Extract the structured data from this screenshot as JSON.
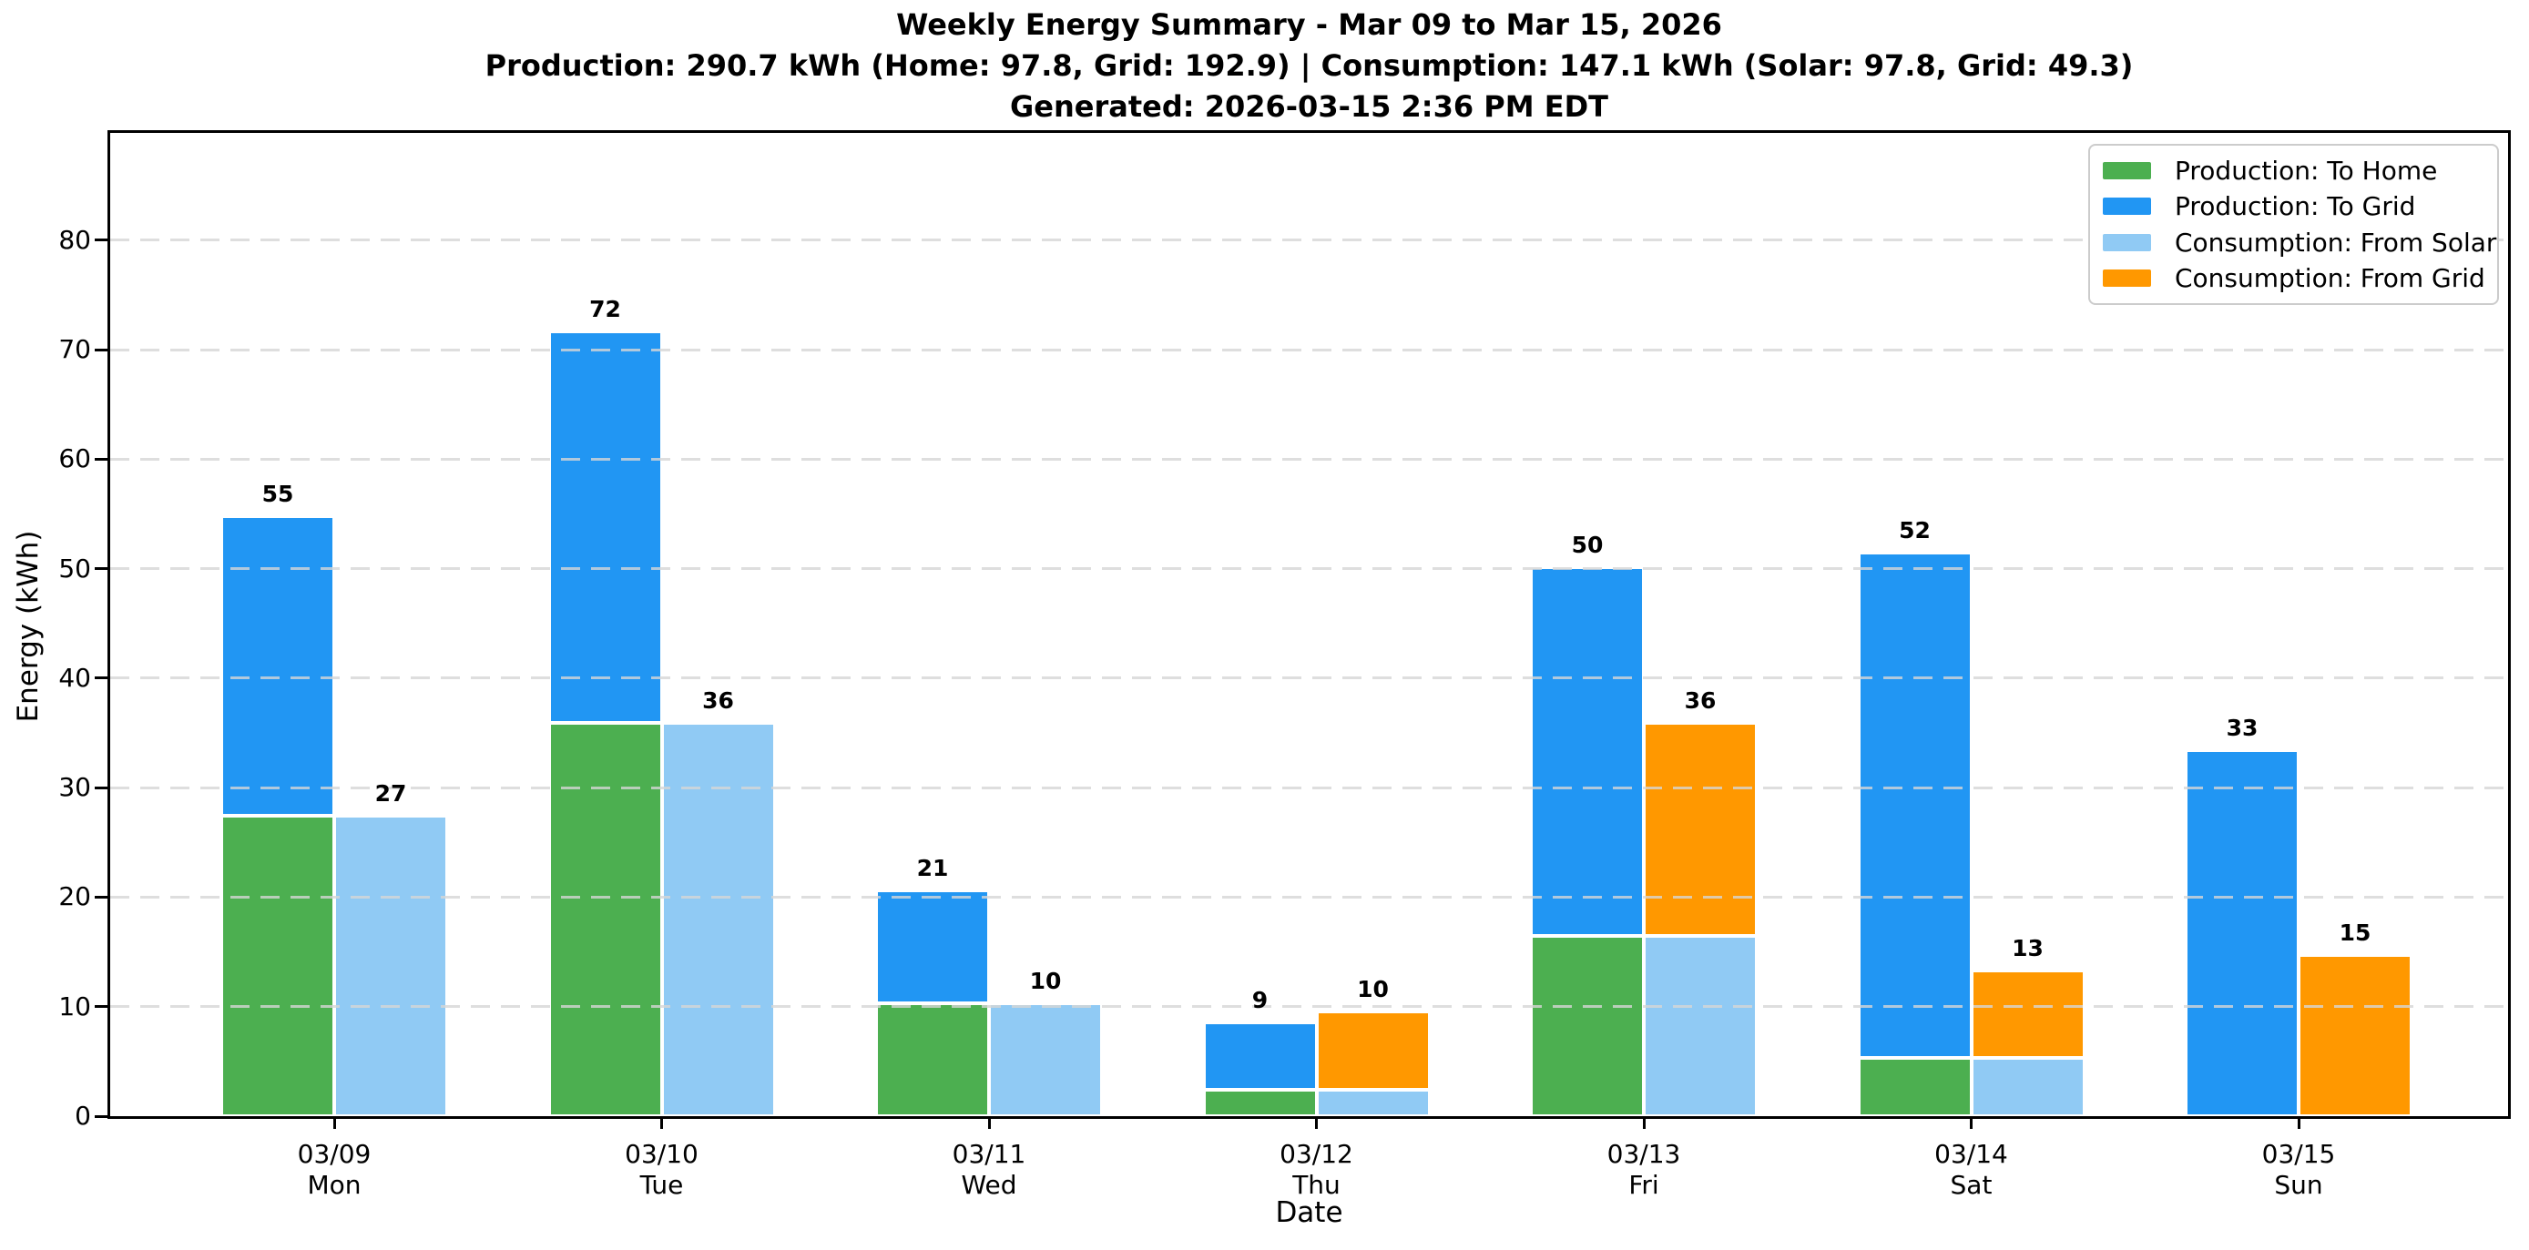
{
  "figure": {
    "title": "Weekly Energy Summary - Mar 09 to Mar 15, 2026",
    "subtitle": "Production: 290.7 kWh (Home: 97.8, Grid: 192.9) | Consumption: 147.1 kWh (Solar: 97.8, Grid: 49.3)",
    "generated_line": "Generated: 2026-03-15 2:36 PM EDT"
  },
  "axes": {
    "xlabel": "Date",
    "ylabel": "Energy (kWh)"
  },
  "legend": {
    "items": [
      {
        "label": "Production: To Home",
        "color": "#4CAF50"
      },
      {
        "label": "Production: To Grid",
        "color": "#2196F3"
      },
      {
        "label": "Consumption: From Solar",
        "color": "#90CAF4"
      },
      {
        "label": "Consumption: From Grid",
        "color": "#FF9800"
      }
    ]
  },
  "colors": {
    "production_home": "#4CAF50",
    "production_grid": "#2196F3",
    "consumption_solar": "#90CAF4",
    "consumption_grid": "#FF9800",
    "gridline": "#D6D6D6",
    "spine": "#000000"
  },
  "chart_data": {
    "type": "bar",
    "mode": "two stacked bars per category (production left, consumption right)",
    "title": "Weekly Energy Summary - Mar 09 to Mar 15, 2026",
    "subtitle": "Production: 290.7 kWh (Home: 97.8, Grid: 192.9) | Consumption: 147.1 kWh (Solar: 97.8, Grid: 49.3)",
    "generated": "Generated: 2026-03-15 2:36 PM EDT",
    "xlabel": "Date",
    "ylabel": "Energy (kWh)",
    "ylim": [
      0,
      89.8
    ],
    "yticks": [
      0,
      10,
      20,
      30,
      40,
      50,
      60,
      70,
      80
    ],
    "grid": "horizontal dashed light-gray, drawn over bars",
    "legend_position": "upper right",
    "categories": [
      {
        "date": "03/09",
        "weekday": "Mon"
      },
      {
        "date": "03/10",
        "weekday": "Tue"
      },
      {
        "date": "03/11",
        "weekday": "Wed"
      },
      {
        "date": "03/12",
        "weekday": "Thu"
      },
      {
        "date": "03/13",
        "weekday": "Fri"
      },
      {
        "date": "03/14",
        "weekday": "Sat"
      },
      {
        "date": "03/15",
        "weekday": "Sun"
      }
    ],
    "stacks": [
      {
        "id": "production",
        "total_labels": [
          "55",
          "72",
          "21",
          "9",
          "50",
          "52",
          "33"
        ],
        "series": [
          {
            "name": "Production: To Home",
            "color": "#4CAF50",
            "values": [
              27.4,
              35.9,
              10.3,
              2.4,
              16.5,
              5.3,
              0
            ]
          },
          {
            "name": "Production: To Grid",
            "color": "#2196F3",
            "values": [
              27.4,
              35.8,
              10.3,
              6.2,
              33.6,
              46.2,
              33.4
            ]
          }
        ]
      },
      {
        "id": "consumption",
        "total_labels": [
          "27",
          "36",
          "10",
          "10",
          "36",
          "13",
          "15"
        ],
        "series": [
          {
            "name": "Consumption: From Solar",
            "color": "#90CAF4",
            "values": [
              27.4,
              35.9,
              10.3,
              2.4,
              16.5,
              5.3,
              0
            ]
          },
          {
            "name": "Consumption: From Grid",
            "color": "#FF9800",
            "values": [
              0,
              0,
              0,
              7.2,
              19.4,
              8.0,
              14.7
            ]
          }
        ]
      }
    ],
    "weekly_totals": {
      "production_kwh": 290.7,
      "production_to_home_kwh": 97.8,
      "production_to_grid_kwh": 192.9,
      "consumption_kwh": 147.1,
      "consumption_from_solar_kwh": 97.8,
      "consumption_from_grid_kwh": 49.3
    }
  }
}
